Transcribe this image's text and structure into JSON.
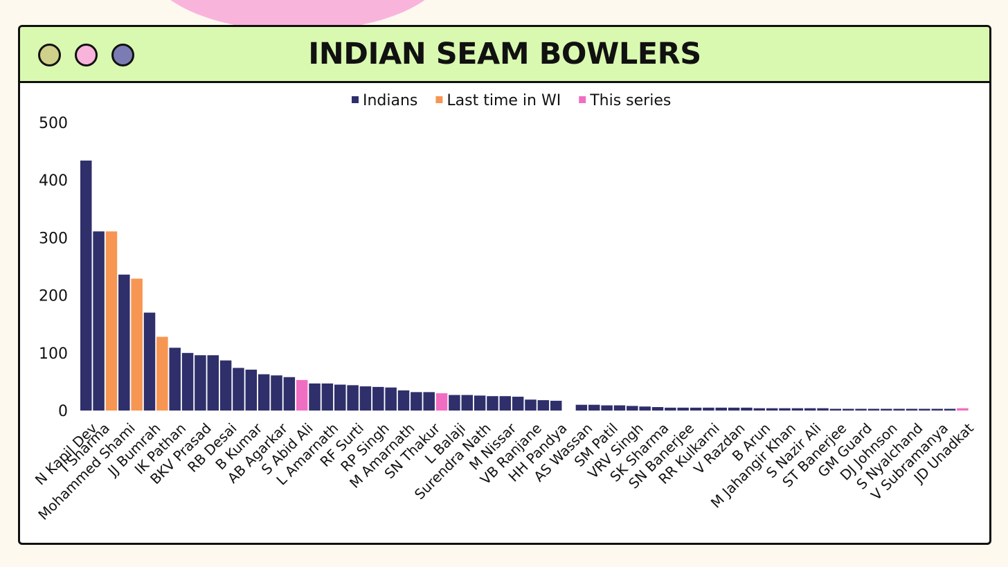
{
  "window": {
    "title": "INDIAN SEAM BOWLERS",
    "dots": [
      {
        "name": "olive-dot",
        "color": "#cfd08a"
      },
      {
        "name": "pink-dot",
        "color": "#f9b4dc"
      },
      {
        "name": "purple-dot",
        "color": "#7b7cb3"
      }
    ]
  },
  "chart_data": {
    "type": "bar",
    "title": "",
    "xlabel": "",
    "ylabel": "",
    "ylim": [
      0,
      500
    ],
    "yticks": [
      0,
      100,
      200,
      300,
      400,
      500
    ],
    "grid": false,
    "legend_position": "top-center",
    "legend": [
      {
        "name": "Indians",
        "color": "#2f2f6b"
      },
      {
        "name": "Last time in WI",
        "color": "#f79552"
      },
      {
        "name": "This series",
        "color": "#f06ec2"
      }
    ],
    "bars": [
      {
        "label": "N Kapil Dev",
        "value": 434,
        "series": "Indians"
      },
      {
        "label": "I Sharma",
        "value": 311,
        "series": "Indians"
      },
      {
        "label": "",
        "value": 311,
        "series": "Last time in WI"
      },
      {
        "label": "Mohammed Shami",
        "value": 236,
        "series": "Indians"
      },
      {
        "label": "",
        "value": 229,
        "series": "Last time in WI"
      },
      {
        "label": "JJ Bumrah",
        "value": 170,
        "series": "Indians"
      },
      {
        "label": "",
        "value": 128,
        "series": "Last time in WI"
      },
      {
        "label": "IK Pathan",
        "value": 109,
        "series": "Indians"
      },
      {
        "label": "",
        "value": 100,
        "series": "Indians"
      },
      {
        "label": "BKV Prasad",
        "value": 96,
        "series": "Indians"
      },
      {
        "label": "",
        "value": 96,
        "series": "Indians"
      },
      {
        "label": "RB Desai",
        "value": 87,
        "series": "Indians"
      },
      {
        "label": "",
        "value": 74,
        "series": "Indians"
      },
      {
        "label": "B Kumar",
        "value": 71,
        "series": "Indians"
      },
      {
        "label": "",
        "value": 63,
        "series": "Indians"
      },
      {
        "label": "AB Agarkar",
        "value": 61,
        "series": "Indians"
      },
      {
        "label": "",
        "value": 58,
        "series": "Indians"
      },
      {
        "label": "S Abid Ali",
        "value": 53,
        "series": "This series"
      },
      {
        "label": "",
        "value": 47,
        "series": "Indians"
      },
      {
        "label": "L Amarnath",
        "value": 47,
        "series": "Indians"
      },
      {
        "label": "",
        "value": 45,
        "series": "Indians"
      },
      {
        "label": "RF Surti",
        "value": 44,
        "series": "Indians"
      },
      {
        "label": "",
        "value": 42,
        "series": "Indians"
      },
      {
        "label": "RP Singh",
        "value": 41,
        "series": "Indians"
      },
      {
        "label": "",
        "value": 40,
        "series": "Indians"
      },
      {
        "label": "M Amarnath",
        "value": 35,
        "series": "Indians"
      },
      {
        "label": "",
        "value": 32,
        "series": "Indians"
      },
      {
        "label": "SN Thakur",
        "value": 32,
        "series": "Indians"
      },
      {
        "label": "",
        "value": 30,
        "series": "This series"
      },
      {
        "label": "L Balaji",
        "value": 27,
        "series": "Indians"
      },
      {
        "label": "",
        "value": 27,
        "series": "Indians"
      },
      {
        "label": "Surendra Nath",
        "value": 26,
        "series": "Indians"
      },
      {
        "label": "",
        "value": 25,
        "series": "Indians"
      },
      {
        "label": "M Nissar",
        "value": 25,
        "series": "Indians"
      },
      {
        "label": "",
        "value": 24,
        "series": "Indians"
      },
      {
        "label": "VB Ranjane",
        "value": 19,
        "series": "Indians"
      },
      {
        "label": "",
        "value": 18,
        "series": "Indians"
      },
      {
        "label": "HH Pandya",
        "value": 17,
        "series": "Indians"
      },
      {
        "label": "",
        "value": 0,
        "series": "Indians"
      },
      {
        "label": "AS Wassan",
        "value": 10,
        "series": "Indians"
      },
      {
        "label": "",
        "value": 10,
        "series": "Indians"
      },
      {
        "label": "SM Patil",
        "value": 9,
        "series": "Indians"
      },
      {
        "label": "",
        "value": 9,
        "series": "Indians"
      },
      {
        "label": "VRV Singh",
        "value": 8,
        "series": "Indians"
      },
      {
        "label": "",
        "value": 7,
        "series": "Indians"
      },
      {
        "label": "SK Sharma",
        "value": 6,
        "series": "Indians"
      },
      {
        "label": "",
        "value": 5,
        "series": "Indians"
      },
      {
        "label": "SN Banerjee",
        "value": 5,
        "series": "Indians"
      },
      {
        "label": "",
        "value": 5,
        "series": "Indians"
      },
      {
        "label": "RR Kulkarni",
        "value": 5,
        "series": "Indians"
      },
      {
        "label": "",
        "value": 5,
        "series": "Indians"
      },
      {
        "label": "V Razdan",
        "value": 5,
        "series": "Indians"
      },
      {
        "label": "",
        "value": 5,
        "series": "Indians"
      },
      {
        "label": "B Arun",
        "value": 4,
        "series": "Indians"
      },
      {
        "label": "",
        "value": 4,
        "series": "Indians"
      },
      {
        "label": "M Jahangir Khan",
        "value": 4,
        "series": "Indians"
      },
      {
        "label": "",
        "value": 4,
        "series": "Indians"
      },
      {
        "label": "S Nazir Ali",
        "value": 4,
        "series": "Indians"
      },
      {
        "label": "",
        "value": 4,
        "series": "Indians"
      },
      {
        "label": "ST Banerjee",
        "value": 3,
        "series": "Indians"
      },
      {
        "label": "",
        "value": 3,
        "series": "Indians"
      },
      {
        "label": "GM Guard",
        "value": 3,
        "series": "Indians"
      },
      {
        "label": "",
        "value": 3,
        "series": "Indians"
      },
      {
        "label": "DJ Johnson",
        "value": 3,
        "series": "Indians"
      },
      {
        "label": "",
        "value": 3,
        "series": "Indians"
      },
      {
        "label": "S Nyalchand",
        "value": 3,
        "series": "Indians"
      },
      {
        "label": "",
        "value": 3,
        "series": "Indians"
      },
      {
        "label": "V Subramanya",
        "value": 3,
        "series": "Indians"
      },
      {
        "label": "",
        "value": 3,
        "series": "Indians"
      },
      {
        "label": "JD Unadkat",
        "value": 4,
        "series": "This series"
      }
    ]
  }
}
